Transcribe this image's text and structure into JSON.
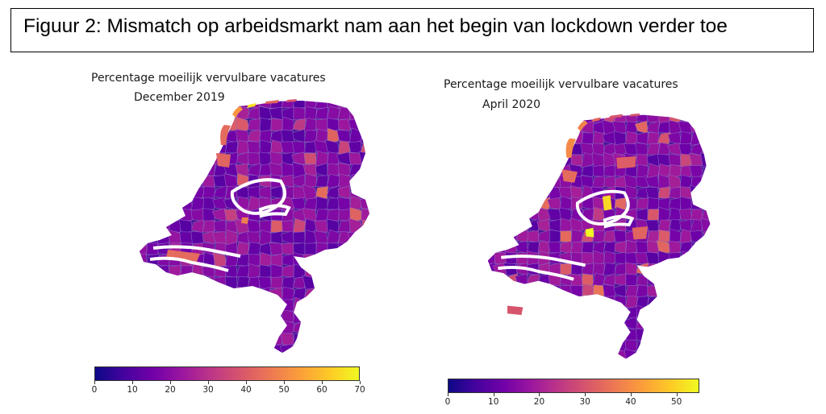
{
  "caption": "Figuur 2: Mismatch op arbeidsmarkt nam aan het begin van lockdown verder toe",
  "colormap": {
    "name": "plasma",
    "stops": [
      "#0d0887",
      "#46039f",
      "#7201a8",
      "#9c179e",
      "#bd3786",
      "#d8576b",
      "#ed7953",
      "#fb9f3a",
      "#fdca26",
      "#f0f921"
    ]
  },
  "maps": [
    {
      "title_line1": "Percentage moeilijk vervulbare vacatures",
      "title_line2": "December 2019",
      "colorbar_max": 70,
      "ticks": [
        "0",
        "10",
        "20",
        "30",
        "40",
        "50",
        "60",
        "70"
      ]
    },
    {
      "title_line1": "Percentage moeilijk vervulbare vacatures",
      "title_line2": "April 2020",
      "colorbar_max": 55,
      "ticks": [
        "0",
        "10",
        "20",
        "30",
        "40",
        "50"
      ]
    }
  ],
  "colors": {
    "base_fill": "#4b1596",
    "region_stroke": "#8e6fc4",
    "water": "#ffffff"
  }
}
